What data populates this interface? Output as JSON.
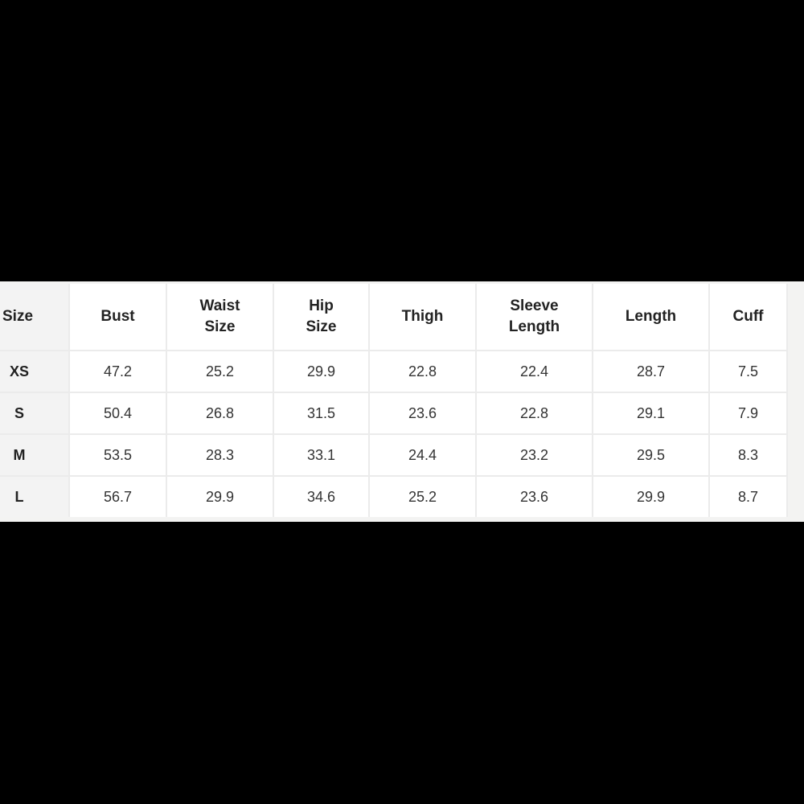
{
  "table": {
    "headers": [
      [
        "Size"
      ],
      [
        "Bust"
      ],
      [
        "Waist",
        "Size"
      ],
      [
        "Hip",
        "Size"
      ],
      [
        "Thigh"
      ],
      [
        "Sleeve",
        "Length"
      ],
      [
        "Length"
      ],
      [
        "Cuff"
      ]
    ],
    "rows": [
      [
        "XS",
        "47.2",
        "25.2",
        "29.9",
        "22.8",
        "22.4",
        "28.7",
        "7.5"
      ],
      [
        "S",
        "50.4",
        "26.8",
        "31.5",
        "23.6",
        "22.8",
        "29.1",
        "7.9"
      ],
      [
        "M",
        "53.5",
        "28.3",
        "33.1",
        "24.4",
        "23.2",
        "29.5",
        "8.3"
      ],
      [
        "L",
        "56.7",
        "29.9",
        "34.6",
        "25.2",
        "23.6",
        "29.9",
        "8.7"
      ]
    ]
  }
}
